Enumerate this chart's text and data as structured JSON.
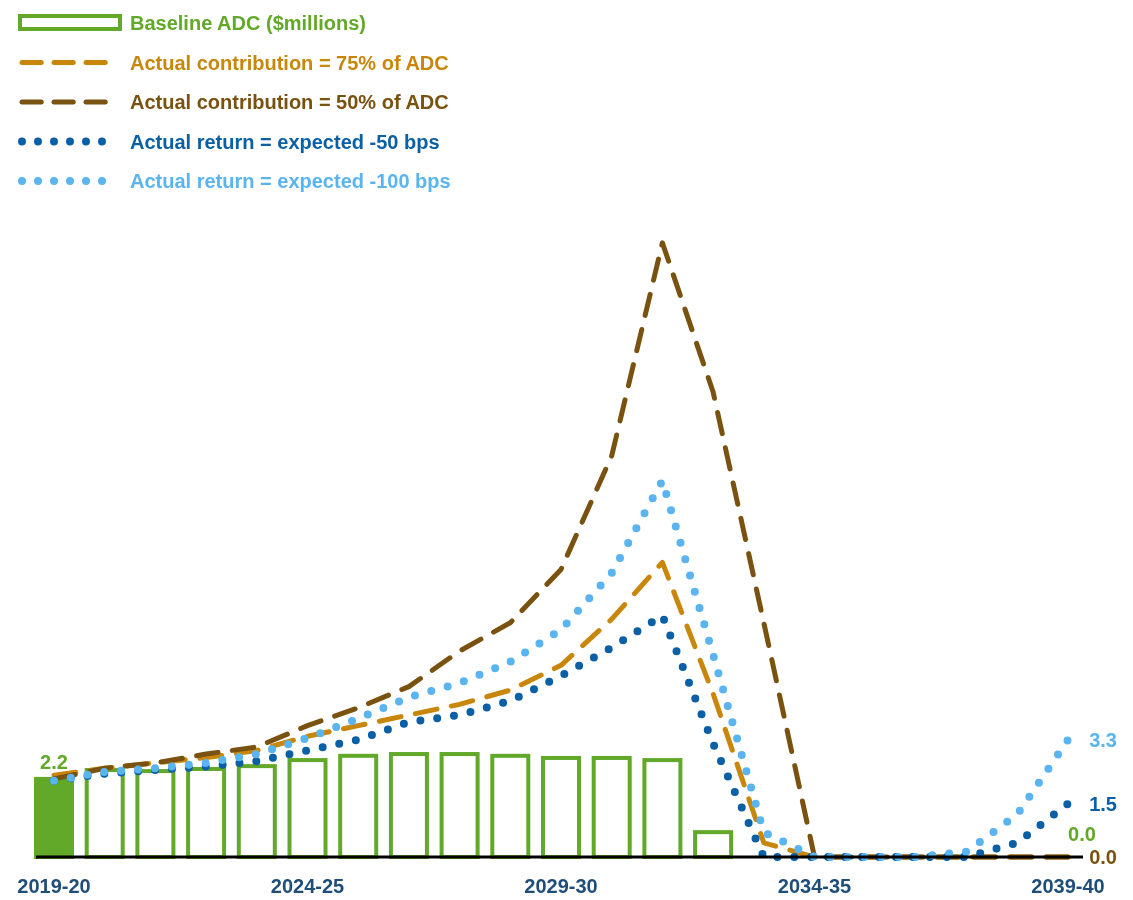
{
  "chart_data": {
    "type": "bar",
    "categories": [
      "2019-20",
      null,
      null,
      null,
      null,
      "2024-25",
      null,
      null,
      null,
      null,
      "2029-30",
      null,
      null,
      null,
      null,
      "2034-35",
      null,
      null,
      null,
      null,
      "2039-40"
    ],
    "legend": "top left",
    "series": [
      {
        "name": "Baseline ADC ($millions)",
        "color": "#62a829",
        "colors": [
          "#62a829",
          "#ffffff",
          "#ffffff",
          "#ffffff",
          "#ffffff",
          "#ffffff",
          "#ffffff",
          "#ffffff",
          "#ffffff",
          "#ffffff",
          "#ffffff",
          "#ffffff",
          "#ffffff",
          "#ffffff",
          null,
          null,
          null,
          null,
          null,
          null,
          null
        ],
        "values": [
          2.2,
          2.45,
          2.42,
          2.48,
          2.56,
          2.73,
          2.85,
          2.9,
          2.9,
          2.85,
          2.79,
          2.79,
          2.73,
          0.7,
          0,
          0,
          0,
          0,
          0,
          0,
          0
        ],
        "value_labels": [
          "2.2",
          null,
          null,
          null,
          null,
          null,
          null,
          null,
          null,
          null,
          null,
          null,
          null,
          null,
          null,
          null,
          null,
          null,
          null,
          null,
          "0.0"
        ]
      },
      {
        "name": "Actual contribution = 75% of ADC",
        "type": "line",
        "line_style": "dashed",
        "color": "#c8860a",
        "values": [
          2.3,
          2.5,
          2.65,
          2.8,
          3.0,
          3.4,
          3.7,
          4.0,
          4.3,
          4.7,
          5.4,
          6.7,
          8.3,
          4.6,
          0.4,
          0,
          0,
          0,
          0,
          0,
          0
        ]
      },
      {
        "name": "Actual contribution = 50% of ADC",
        "type": "line",
        "line_style": "dashed",
        "color": "#7a5210",
        "values": [
          2.2,
          2.5,
          2.65,
          2.9,
          3.1,
          3.7,
          4.2,
          4.8,
          5.8,
          6.6,
          8.1,
          11.3,
          17.3,
          13.1,
          6.6,
          0,
          0,
          0,
          0,
          0,
          0
        ],
        "value_labels": [
          null,
          null,
          null,
          null,
          null,
          null,
          null,
          null,
          null,
          null,
          null,
          null,
          null,
          null,
          null,
          null,
          null,
          null,
          null,
          null,
          "0.0"
        ]
      },
      {
        "name": "Actual return = expected -50 bps",
        "type": "line",
        "line_style": "dotted",
        "color": "#0b5fa5",
        "values": [
          2.15,
          2.35,
          2.45,
          2.55,
          2.7,
          3.0,
          3.3,
          3.8,
          4.0,
          4.4,
          5.1,
          5.9,
          6.8,
          3.2,
          0,
          0,
          0,
          0,
          0,
          0.4,
          1.5
        ],
        "value_labels": [
          null,
          null,
          null,
          null,
          null,
          null,
          null,
          null,
          null,
          null,
          null,
          null,
          null,
          null,
          null,
          null,
          null,
          null,
          null,
          null,
          "1.5"
        ]
      },
      {
        "name": "Actual return = expected -100 bps",
        "type": "line",
        "line_style": "dotted",
        "color": "#5ab4f0",
        "values": [
          2.15,
          2.4,
          2.5,
          2.65,
          2.9,
          3.35,
          3.9,
          4.5,
          4.9,
          5.5,
          6.4,
          8.0,
          10.6,
          5.7,
          0.7,
          0,
          0,
          0,
          0.15,
          1.2,
          3.3
        ],
        "value_labels": [
          null,
          null,
          null,
          null,
          null,
          null,
          null,
          null,
          null,
          null,
          null,
          null,
          null,
          null,
          null,
          null,
          null,
          null,
          null,
          null,
          "3.3"
        ]
      }
    ]
  }
}
